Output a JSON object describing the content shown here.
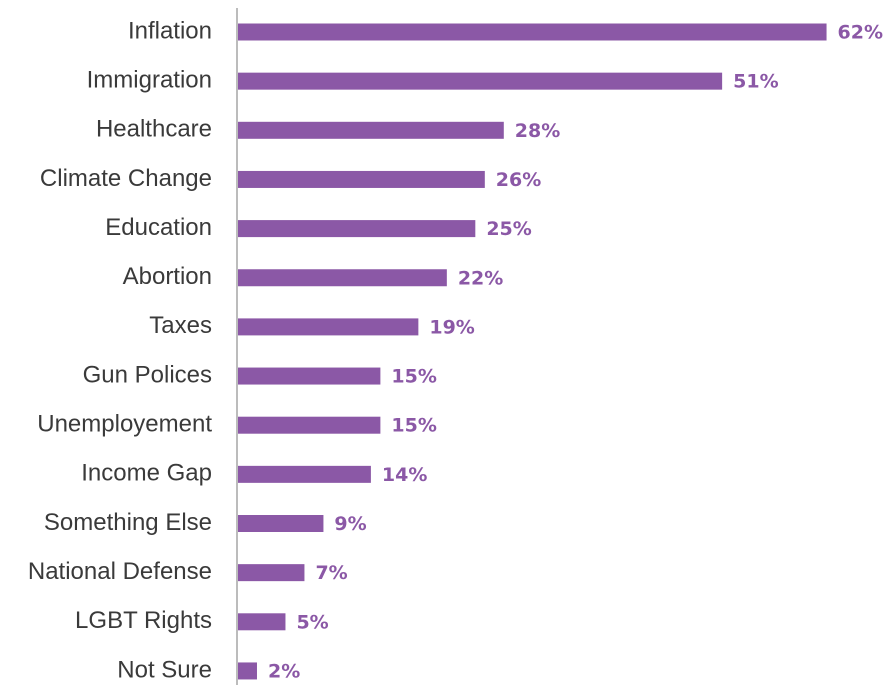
{
  "chart_data": {
    "type": "barh",
    "categories": [
      "Inflation",
      "Immigration",
      "Healthcare",
      "Climate Change",
      "Education",
      "Abortion",
      "Taxes",
      "Gun Polices",
      "Unemployement",
      "Income Gap",
      "Something Else",
      "National Defense",
      "LGBT Rights",
      "Not Sure"
    ],
    "values": [
      62,
      51,
      28,
      26,
      25,
      22,
      19,
      15,
      15,
      14,
      9,
      7,
      5,
      2
    ],
    "value_labels": [
      "62%",
      "51%",
      "28%",
      "26%",
      "25%",
      "22%",
      "19%",
      "15%",
      "15%",
      "14%",
      "9%",
      "7%",
      "5%",
      "2%"
    ],
    "color": "#8b58a6",
    "xlim": [
      0,
      69
    ]
  }
}
